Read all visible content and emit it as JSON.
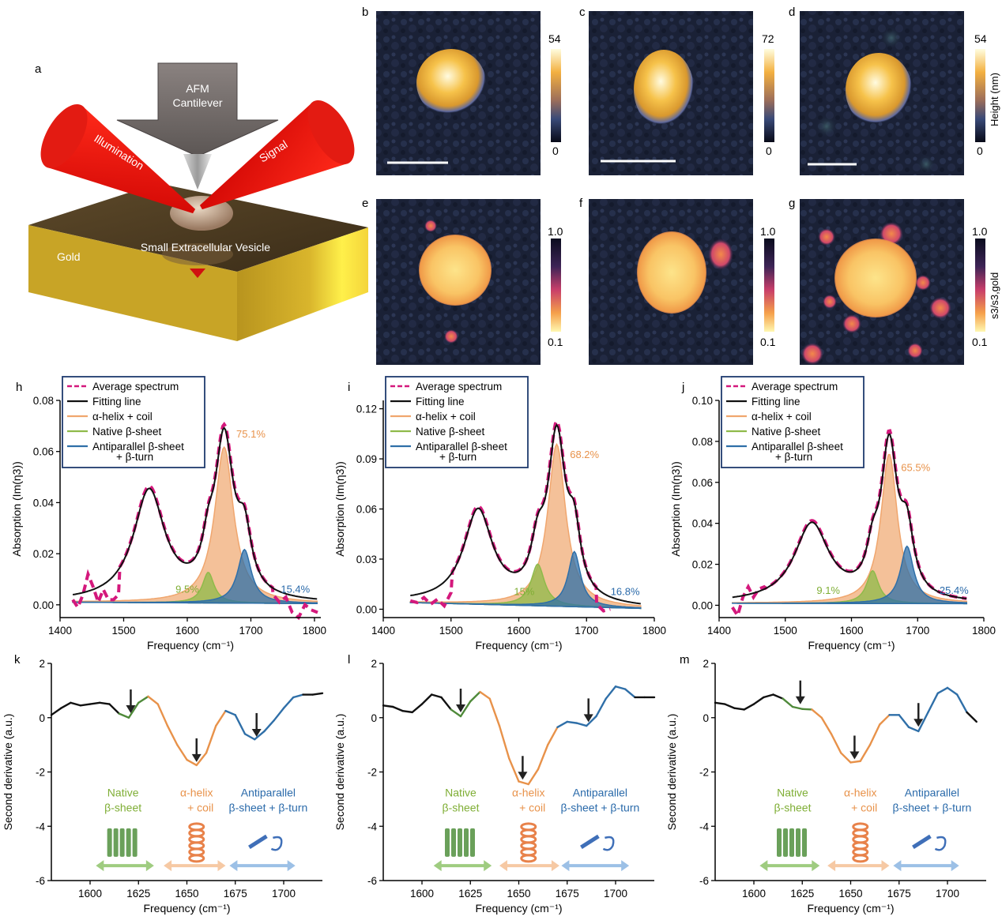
{
  "panel_a": {
    "letter": "a",
    "cantilever_label_1": "AFM",
    "cantilever_label_2": "Cantilever",
    "illumination_label": "Illumination",
    "signal_label": "Signal",
    "vesicle_label": "Small Extracellular Vesicle",
    "gold_label": "Gold"
  },
  "images": {
    "height_row": [
      {
        "letter": "b",
        "cbar_max": "54",
        "cbar_min": "0"
      },
      {
        "letter": "c",
        "cbar_max": "72",
        "cbar_min": "0"
      },
      {
        "letter": "d",
        "cbar_max": "54",
        "cbar_min": "0",
        "cbar_title": "Height (nm)"
      }
    ],
    "ratio_row": [
      {
        "letter": "e",
        "cbar_max": "1.0",
        "cbar_min": "0.1"
      },
      {
        "letter": "f",
        "cbar_max": "1.0",
        "cbar_min": "0.1"
      },
      {
        "letter": "g",
        "cbar_max": "1.0",
        "cbar_min": "0.1",
        "cbar_title": "s3/s3,gold"
      }
    ]
  },
  "legend": {
    "average": "Average spectrum",
    "fitting": "Fitting line",
    "helix": "α-helix + coil",
    "native": "Native β-sheet",
    "anti_1": "Antiparallel β-sheet",
    "anti_2": "+ β-turn"
  },
  "colors": {
    "average": "#d4187c",
    "fitting": "#111111",
    "helix": "#f0a66e",
    "native": "#8fba4a",
    "anti": "#2f6fa8",
    "helix_text": "#e8924a",
    "native_text": "#7fae35",
    "anti_text": "#2a6aaa",
    "legend_border": "#1f3a6e"
  },
  "annotation_labels": {
    "native_1": "Native",
    "native_2": "β-sheet",
    "helix_1": "α-helix",
    "helix_2": "+ coil",
    "anti_1": "Antiparallel",
    "anti_2": "β-sheet + β-turn"
  },
  "chart_data": [
    {
      "id": "h",
      "letter": "h",
      "type": "line",
      "xlabel": "Frequency (cm⁻¹)",
      "ylabel": "Absorption (Im(η3))",
      "xlim": [
        1400,
        1810
      ],
      "ylim": [
        -0.005,
        0.08
      ],
      "xticks": [
        1400,
        1500,
        1600,
        1700,
        1800
      ],
      "yticks": [
        0.0,
        0.02,
        0.04,
        0.06,
        0.08
      ],
      "ytick_labels": [
        "0.00",
        "0.02",
        "0.04",
        "0.06",
        "0.08"
      ],
      "fit_range": [
        1420,
        1805
      ],
      "amide_ii": {
        "center": 1540,
        "amp": 0.043,
        "width": 30
      },
      "components": [
        {
          "name": "α-helix + coil",
          "center": 1658,
          "amp": 0.061,
          "width": 18
        },
        {
          "name": "Native β-sheet",
          "center": 1633,
          "amp": 0.012,
          "width": 11
        },
        {
          "name": "Antiparallel β-sheet + β-turn",
          "center": 1690,
          "amp": 0.021,
          "width": 13
        }
      ],
      "background": [
        1420,
        0.001,
        1805,
        0.0005
      ],
      "noise_segments": [
        {
          "x": [
            1420,
            1428,
            1436,
            1444,
            1452,
            1460,
            1468,
            1476,
            1484,
            1492
          ],
          "y": [
            0.002,
            -0.001,
            0.004,
            0.012,
            0.007,
            0.001,
            0.006,
            0.002,
            0.002,
            0.004
          ]
        },
        {
          "x": [
            1735,
            1745,
            1755,
            1765,
            1775,
            1785,
            1795,
            1805
          ],
          "y": [
            0.004,
            0.001,
            0.003,
            -0.003,
            -0.005,
            0.0,
            -0.002,
            -0.003
          ]
        }
      ],
      "percent_labels": [
        {
          "text": "75.1%",
          "component": "helix",
          "x": 1700,
          "y": 0.0655
        },
        {
          "text": "9.5%",
          "component": "native",
          "x": 1600,
          "y": 0.0048
        },
        {
          "text": "15.4%",
          "component": "anti",
          "x": 1770,
          "y": 0.0048
        }
      ]
    },
    {
      "id": "i",
      "letter": "i",
      "type": "line",
      "xlabel": "Frequency (cm⁻¹)",
      "ylabel": "Absorption (Im(η3))",
      "xlim": [
        1400,
        1800
      ],
      "ylim": [
        -0.005,
        0.125
      ],
      "xticks": [
        1400,
        1500,
        1600,
        1700,
        1800
      ],
      "yticks": [
        0.0,
        0.03,
        0.06,
        0.09,
        0.12
      ],
      "ytick_labels": [
        "0.00",
        "0.03",
        "0.06",
        "0.09",
        "0.12"
      ],
      "fit_range": [
        1440,
        1780
      ],
      "amide_ii": {
        "center": 1540,
        "amp": 0.055,
        "width": 26
      },
      "components": [
        {
          "name": "α-helix + coil",
          "center": 1656,
          "amp": 0.097,
          "width": 16
        },
        {
          "name": "Native β-sheet",
          "center": 1628,
          "amp": 0.025,
          "width": 12
        },
        {
          "name": "Antiparallel β-sheet + β-turn",
          "center": 1682,
          "amp": 0.033,
          "width": 11
        }
      ],
      "background": [
        1440,
        0.004,
        1780,
        0.0005
      ],
      "noise_segments": [
        {
          "x": [
            1440,
            1450,
            1460,
            1470,
            1480,
            1490,
            1500
          ],
          "y": [
            0.005,
            0.004,
            0.007,
            0.003,
            0.006,
            0.002,
            0.01
          ]
        },
        {
          "x": [
            1715,
            1725,
            1735
          ],
          "y": [
            0.003,
            -0.001,
            0.0
          ]
        }
      ],
      "percent_labels": [
        {
          "text": "68.2%",
          "component": "helix",
          "x": 1697,
          "y": 0.0905
        },
        {
          "text": "15%",
          "component": "native",
          "x": 1608,
          "y": 0.0085
        },
        {
          "text": "16.8%",
          "component": "anti",
          "x": 1757,
          "y": 0.0085
        }
      ]
    },
    {
      "id": "j",
      "letter": "j",
      "type": "line",
      "xlabel": "Frequency (cm⁻¹)",
      "ylabel": "Absorption (Im(η3))",
      "xlim": [
        1400,
        1800
      ],
      "ylim": [
        -0.006,
        0.1
      ],
      "xticks": [
        1400,
        1500,
        1600,
        1700,
        1800
      ],
      "yticks": [
        0.0,
        0.02,
        0.04,
        0.06,
        0.08,
        0.1
      ],
      "ytick_labels": [
        "0.00",
        "0.02",
        "0.04",
        "0.06",
        "0.08",
        "0.10"
      ],
      "fit_range": [
        1420,
        1775
      ],
      "amide_ii": {
        "center": 1540,
        "amp": 0.038,
        "width": 32
      },
      "components": [
        {
          "name": "α-helix + coil",
          "center": 1657,
          "amp": 0.073,
          "width": 15
        },
        {
          "name": "Native β-sheet",
          "center": 1632,
          "amp": 0.016,
          "width": 11
        },
        {
          "name": "Antiparallel β-sheet + β-turn",
          "center": 1684,
          "amp": 0.028,
          "width": 12
        }
      ],
      "background": [
        1420,
        0.001,
        1775,
        0.0008
      ],
      "noise_segments": [
        {
          "x": [
            1420,
            1428,
            1436,
            1444,
            1452,
            1460,
            1468
          ],
          "y": [
            -0.001,
            -0.005,
            0.004,
            0.009,
            0.004,
            0.008,
            0.009
          ]
        }
      ],
      "percent_labels": [
        {
          "text": "65.5%",
          "component": "helix",
          "x": 1697,
          "y": 0.0655
        },
        {
          "text": "9.1%",
          "component": "native",
          "x": 1565,
          "y": 0.0055
        },
        {
          "text": "25.4%",
          "component": "anti",
          "x": 1755,
          "y": 0.0055
        }
      ]
    },
    {
      "id": "k",
      "letter": "k",
      "type": "line",
      "xlabel": "Frequency (cm⁻¹)",
      "ylabel": "Second derivative (a.u.)",
      "xlim": [
        1580,
        1720
      ],
      "ylim": [
        -6,
        2
      ],
      "xticks": [
        1600,
        1625,
        1650,
        1675,
        1700
      ],
      "yticks": [
        2,
        0,
        -2,
        -4,
        -6
      ],
      "ytick_labels": [
        "2",
        "0",
        "-2",
        "-4",
        "-6"
      ],
      "x": [
        1580,
        1585,
        1590,
        1595,
        1600,
        1605,
        1610,
        1615,
        1620,
        1625,
        1630,
        1635,
        1640,
        1645,
        1650,
        1655,
        1660,
        1665,
        1670,
        1675,
        1680,
        1685,
        1690,
        1695,
        1700,
        1705,
        1710,
        1715,
        1720
      ],
      "y": [
        0.1,
        0.35,
        0.55,
        0.45,
        0.5,
        0.55,
        0.5,
        0.15,
        0.0,
        0.55,
        0.78,
        0.5,
        -0.3,
        -1.0,
        -1.55,
        -1.75,
        -1.3,
        -0.3,
        0.25,
        0.1,
        -0.6,
        -0.8,
        -0.5,
        -0.1,
        0.35,
        0.75,
        0.85,
        0.85,
        0.9
      ],
      "arrows": [
        {
          "x": 1621,
          "y": 0.05
        },
        {
          "x": 1655,
          "y": -1.75
        },
        {
          "x": 1686,
          "y": -0.82
        }
      ],
      "region_label_x": [
        1617,
        1655,
        1692
      ],
      "region_arrows": [
        [
          1603,
          1633
        ],
        [
          1638,
          1670
        ],
        [
          1672,
          1706
        ]
      ]
    },
    {
      "id": "l",
      "letter": "l",
      "type": "line",
      "xlabel": "Frequency (cm⁻¹)",
      "ylabel": "Second derivative (a.u.)",
      "xlim": [
        1580,
        1720
      ],
      "ylim": [
        -6,
        2
      ],
      "xticks": [
        1600,
        1625,
        1650,
        1675,
        1700
      ],
      "yticks": [
        2,
        0,
        -2,
        -4,
        -6
      ],
      "ytick_labels": [
        "2",
        "0",
        "-2",
        "-4",
        "-6"
      ],
      "x": [
        1580,
        1585,
        1590,
        1595,
        1600,
        1605,
        1610,
        1615,
        1620,
        1625,
        1630,
        1635,
        1640,
        1645,
        1650,
        1655,
        1660,
        1665,
        1670,
        1675,
        1680,
        1685,
        1690,
        1695,
        1700,
        1705,
        1710,
        1715,
        1720
      ],
      "y": [
        0.45,
        0.4,
        0.25,
        0.2,
        0.5,
        0.85,
        0.75,
        0.3,
        0.05,
        0.6,
        0.95,
        0.7,
        -0.3,
        -1.5,
        -2.35,
        -2.45,
        -1.9,
        -1.0,
        -0.35,
        -0.15,
        -0.2,
        -0.3,
        0.05,
        0.7,
        1.15,
        1.05,
        0.75,
        0.75,
        0.75
      ],
      "arrows": [
        {
          "x": 1620,
          "y": 0.08
        },
        {
          "x": 1652,
          "y": -2.4
        },
        {
          "x": 1686,
          "y": -0.28
        }
      ],
      "region_label_x": [
        1620,
        1655,
        1692
      ],
      "region_arrows": [
        [
          1606,
          1636
        ],
        [
          1640,
          1671
        ],
        [
          1672,
          1707
        ]
      ]
    },
    {
      "id": "m",
      "letter": "m",
      "type": "line",
      "xlabel": "Frequency (cm⁻¹)",
      "ylabel": "Second derivative (a.u.)",
      "xlim": [
        1580,
        1720
      ],
      "ylim": [
        -6,
        2
      ],
      "xticks": [
        1600,
        1625,
        1650,
        1675,
        1700
      ],
      "yticks": [
        2,
        0,
        -2,
        -4,
        -6
      ],
      "ytick_labels": [
        "2",
        "0",
        "-2",
        "-4",
        "-6"
      ],
      "x": [
        1580,
        1585,
        1590,
        1595,
        1600,
        1605,
        1610,
        1615,
        1620,
        1625,
        1630,
        1635,
        1640,
        1645,
        1650,
        1655,
        1660,
        1665,
        1670,
        1675,
        1680,
        1685,
        1690,
        1695,
        1700,
        1705,
        1710,
        1715
      ],
      "y": [
        0.55,
        0.5,
        0.35,
        0.3,
        0.5,
        0.75,
        0.85,
        0.7,
        0.4,
        0.32,
        0.3,
        0.0,
        -0.6,
        -1.3,
        -1.65,
        -1.6,
        -1.0,
        -0.25,
        0.1,
        0.1,
        -0.35,
        -0.5,
        0.2,
        0.9,
        1.1,
        0.85,
        0.2,
        -0.15
      ],
      "arrows": [
        {
          "x": 1624,
          "y": 0.38
        },
        {
          "x": 1652,
          "y": -1.65
        },
        {
          "x": 1685,
          "y": -0.45
        }
      ],
      "region_label_x": [
        1620,
        1655,
        1692
      ],
      "region_arrows": [
        [
          1603,
          1634
        ],
        [
          1638,
          1670
        ],
        [
          1672,
          1706
        ]
      ]
    }
  ]
}
